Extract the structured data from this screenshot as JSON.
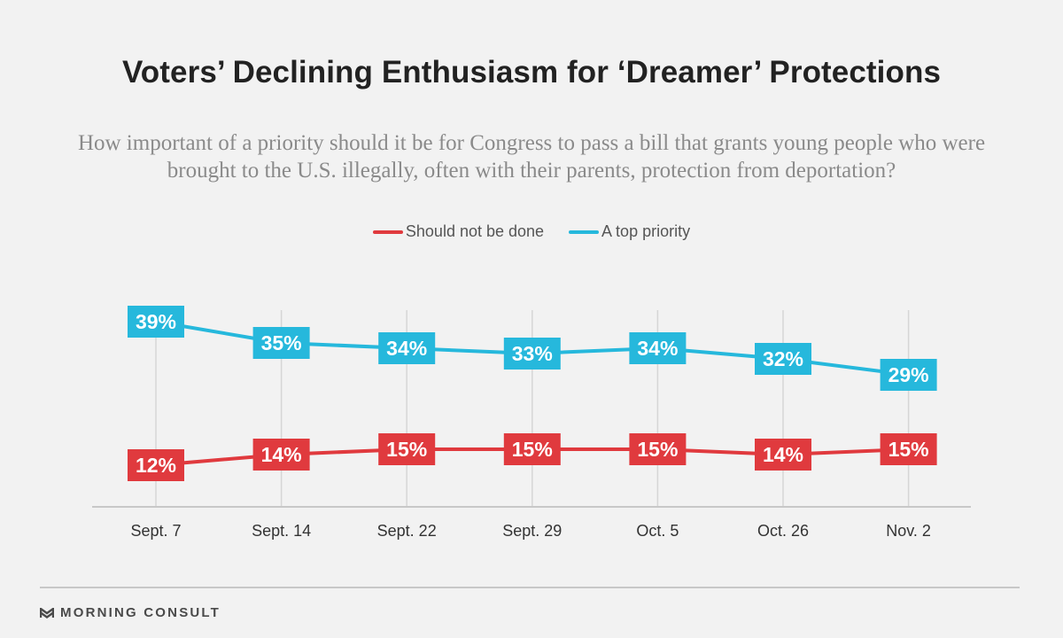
{
  "title": "Voters’ Declining Enthusiasm for ‘Dreamer’ Protections",
  "subtitle": "How important of a priority should it be for Congress to pass a bill that grants young people who were brought to the U.S. illegally, often with their parents, protection from deportation?",
  "brand": "MORNING CONSULT",
  "chart_data": {
    "type": "line",
    "categories": [
      "Sept. 7",
      "Sept. 14",
      "Sept. 22",
      "Sept. 29",
      "Oct. 5",
      "Oct. 26",
      "Nov. 2"
    ],
    "series": [
      {
        "name": "Should not be done",
        "color": "#e03a3e",
        "values": [
          12,
          14,
          15,
          15,
          15,
          14,
          15
        ]
      },
      {
        "name": "A top priority",
        "color": "#26b8dc",
        "values": [
          39,
          35,
          34,
          33,
          34,
          32,
          29
        ]
      }
    ],
    "value_suffix": "%",
    "legend_position": "top-center",
    "vertical_gridlines": true
  }
}
